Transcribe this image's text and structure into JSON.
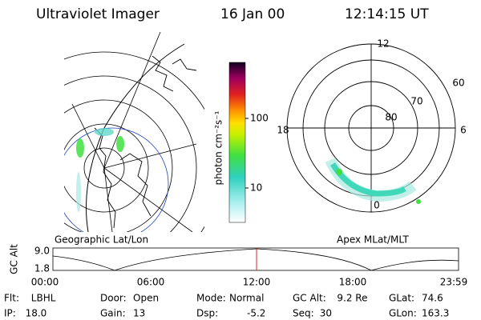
{
  "header": {
    "instrument": "Ultraviolet Imager",
    "date": "16 Jan 00",
    "time": "12:14:15 UT"
  },
  "colorbar": {
    "unit": "photon cm⁻²s⁻¹",
    "ticks": [
      "100",
      "10"
    ]
  },
  "map_panel": {
    "label": "Geographic Lat/Lon"
  },
  "polar_panel": {
    "label": "Apex MLat/MLT",
    "mlt_labels": {
      "top": "12",
      "bottom": "0",
      "left": "18",
      "right": "6"
    },
    "lat_labels": [
      "60",
      "70",
      "80"
    ]
  },
  "orbit_plot": {
    "y_label": "GC Alt",
    "y_ticks": [
      "9.0",
      "1.8"
    ],
    "x_ticks": [
      "00:00",
      "06:00",
      "12:00",
      "18:00",
      "23:59"
    ]
  },
  "info": {
    "rows": [
      [
        {
          "label": "Flt:",
          "value": "LBHL"
        },
        {
          "label": "Door:",
          "value": "Open"
        },
        {
          "label": "Mode:",
          "value": "Normal"
        },
        {
          "label": "GC Alt:",
          "value": "9.2 Re"
        },
        {
          "label": "GLat:",
          "value": "74.6"
        }
      ],
      [
        {
          "label": "IP:",
          "value": "18.0"
        },
        {
          "label": "Gain:",
          "value": "13"
        },
        {
          "label": "Dsp:",
          "value": "-5.2"
        },
        {
          "label": "Seq:",
          "value": "30"
        },
        {
          "label": "GLon:",
          "value": "163.3"
        }
      ]
    ]
  }
}
